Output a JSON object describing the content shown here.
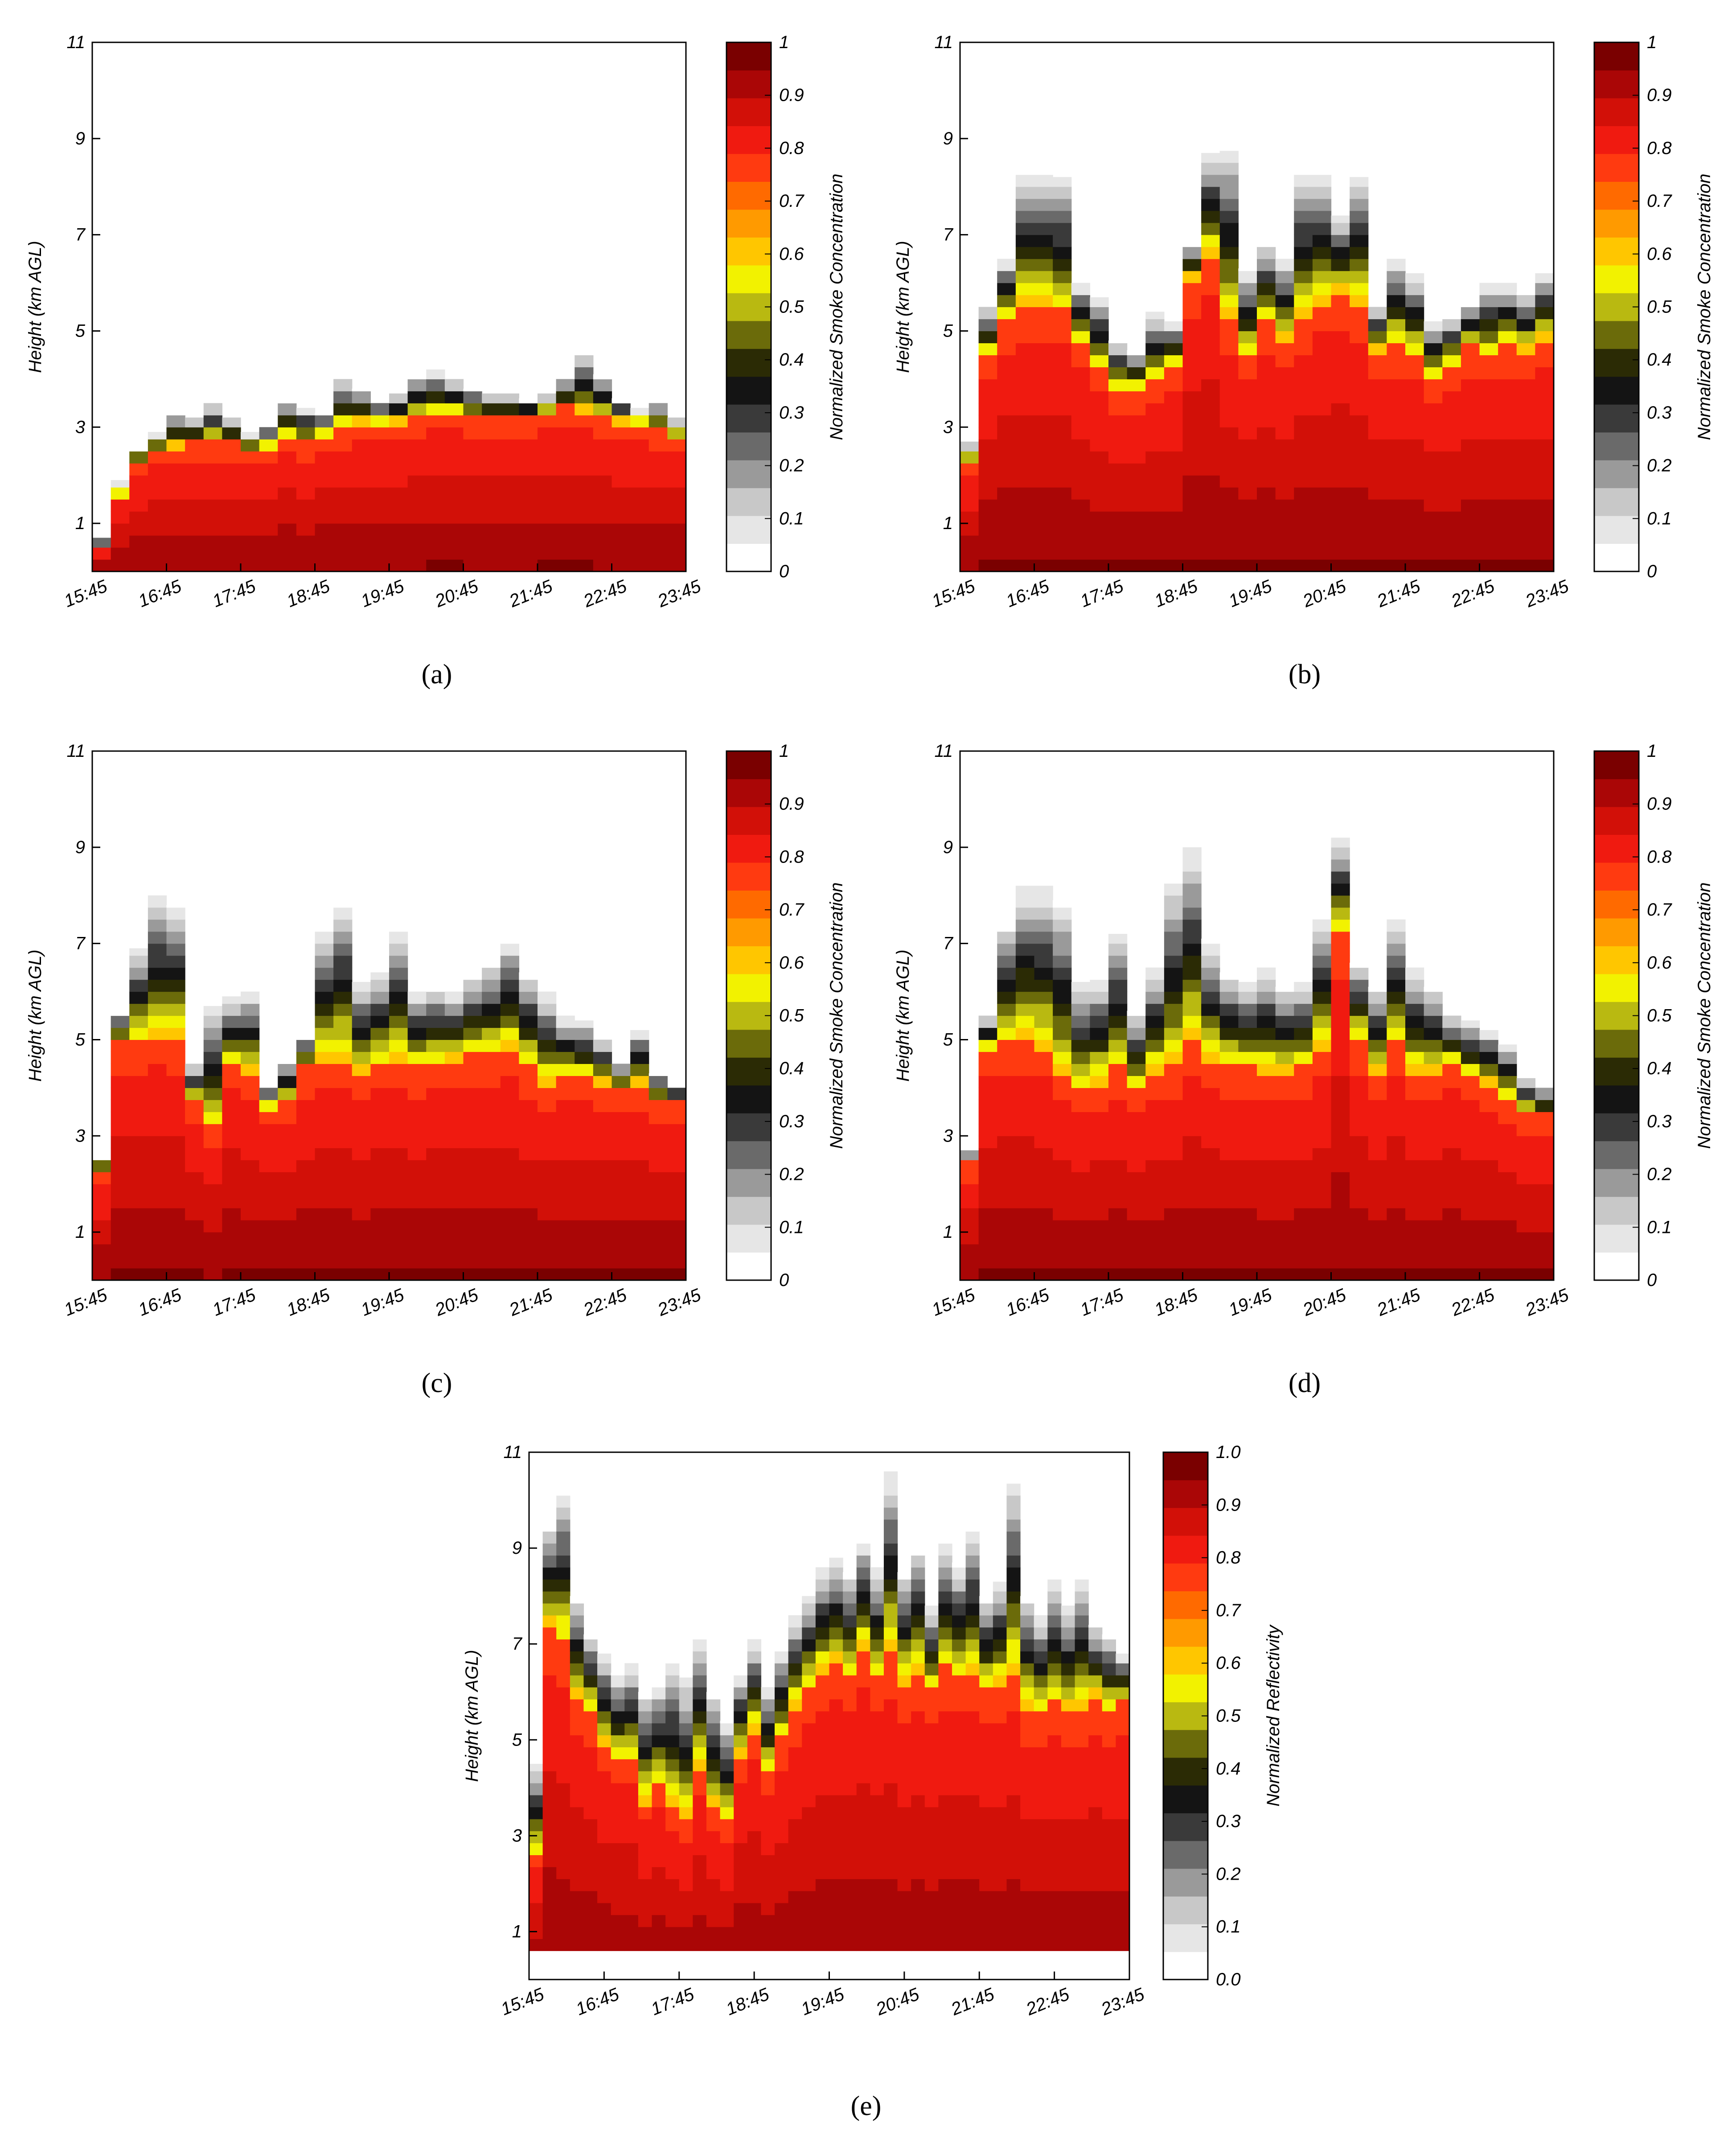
{
  "colors": {
    "scale": [
      "#ffffff",
      "#e6e6e6",
      "#c8c8c8",
      "#9a9a9a",
      "#6a6a6a",
      "#3a3a3a",
      "#141414",
      "#2b2b05",
      "#6b6b0a",
      "#b9b911",
      "#f2f200",
      "#ffc600",
      "#ff9a00",
      "#ff6a00",
      "#ff3a10",
      "#f01a10",
      "#d21008",
      "#aa0606",
      "#7a0000"
    ],
    "frame": "#000000"
  },
  "chart_data": [
    {
      "panel_label": "(a)",
      "type": "heatmap",
      "ylabel": "Height (km AGL)",
      "colorbar_label": "Normalized Smoke Concentration",
      "colorbar_ticks": [
        "0",
        "0.1",
        "0.2",
        "0.3",
        "0.4",
        "0.5",
        "0.6",
        "0.7",
        "0.8",
        "0.9",
        "1"
      ],
      "x_ticks": [
        "15:45",
        "16:45",
        "17:45",
        "18:45",
        "19:45",
        "20:45",
        "21:45",
        "22:45",
        "23:45"
      ],
      "y_ticks": [
        "1",
        "3",
        "5",
        "7",
        "9",
        "11"
      ],
      "ylim": [
        0,
        11
      ],
      "smoke_top_km": [
        0.7,
        1.9,
        2.6,
        2.9,
        3.3,
        3.2,
        3.5,
        3.2,
        2.9,
        3.0,
        3.6,
        3.4,
        3.3,
        4.0,
        3.8,
        3.5,
        3.7,
        4.1,
        4.2,
        4.0,
        3.8,
        3.7,
        3.7,
        3.6,
        3.7,
        4.0,
        4.6,
        4.1,
        3.6,
        3.4,
        3.5,
        3.2
      ],
      "concentrated_top_km": [
        0.5,
        1.6,
        2.3,
        2.5,
        2.6,
        2.7,
        2.7,
        2.7,
        2.5,
        2.6,
        2.8,
        2.7,
        2.8,
        3.0,
        3.1,
        3.1,
        3.1,
        3.2,
        3.3,
        3.3,
        3.2,
        3.2,
        3.2,
        3.2,
        3.3,
        3.4,
        3.3,
        3.2,
        3.1,
        3.1,
        3.0,
        2.8
      ]
    },
    {
      "panel_label": "(b)",
      "type": "heatmap",
      "ylabel": "Height (km AGL)",
      "colorbar_label": "Normalized Smoke Concentration",
      "colorbar_ticks": [
        "0",
        "0.1",
        "0.2",
        "0.3",
        "0.4",
        "0.5",
        "0.6",
        "0.7",
        "0.8",
        "0.9",
        "1"
      ],
      "x_ticks": [
        "15:45",
        "16:45",
        "17:45",
        "18:45",
        "19:45",
        "20:45",
        "21:45",
        "22:45",
        "23:45"
      ],
      "y_ticks": [
        "1",
        "3",
        "5",
        "7",
        "9",
        "11"
      ],
      "ylim": [
        0,
        11
      ],
      "smoke_top_km": [
        2.7,
        5.5,
        6.5,
        8.3,
        8.3,
        8.2,
        6.0,
        5.7,
        4.8,
        4.6,
        5.4,
        5.2,
        6.8,
        8.7,
        8.9,
        6.3,
        6.8,
        6.5,
        8.3,
        8.3,
        7.4,
        8.2,
        5.5,
        6.5,
        6.2,
        5.2,
        5.3,
        5.6,
        6.0,
        6.0,
        5.8,
        6.2
      ],
      "concentrated_top_km": [
        2.3,
        4.5,
        5.3,
        5.5,
        5.5,
        5.4,
        4.8,
        4.2,
        3.8,
        3.8,
        4.0,
        4.3,
        6.1,
        6.6,
        5.2,
        4.5,
        5.2,
        4.8,
        5.3,
        5.6,
        5.8,
        5.5,
        4.6,
        4.7,
        4.5,
        4.0,
        4.3,
        4.7,
        4.5,
        4.7,
        4.6,
        4.8
      ]
    },
    {
      "panel_label": "(c)",
      "type": "heatmap",
      "ylabel": "Height (km AGL)",
      "colorbar_label": "Normalized Smoke Concentration",
      "colorbar_ticks": [
        "0",
        "0.1",
        "0.2",
        "0.3",
        "0.4",
        "0.5",
        "0.6",
        "0.7",
        "0.8",
        "0.9",
        "1"
      ],
      "x_ticks": [
        "15:45",
        "16:45",
        "17:45",
        "18:45",
        "19:45",
        "20:45",
        "21:45",
        "22:45",
        "23:45"
      ],
      "y_ticks": [
        "1",
        "3",
        "5",
        "7",
        "9",
        "11"
      ],
      "ylim": [
        0,
        11
      ],
      "smoke_top_km": [
        2.6,
        5.6,
        6.9,
        8.0,
        7.8,
        4.5,
        5.7,
        5.9,
        6.0,
        4.0,
        4.6,
        5.1,
        7.4,
        7.9,
        6.2,
        6.4,
        7.4,
        6.0,
        6.1,
        6.0,
        6.3,
        6.6,
        7.1,
        6.4,
        6.0,
        5.5,
        5.4,
        5.0,
        4.5,
        5.2,
        4.3,
        4.0
      ],
      "concentrated_top_km": [
        2.3,
        4.9,
        5.0,
        5.1,
        5.0,
        3.7,
        3.2,
        4.5,
        4.3,
        3.6,
        3.7,
        4.4,
        4.6,
        4.6,
        4.3,
        4.5,
        4.6,
        4.4,
        4.5,
        4.6,
        4.7,
        4.7,
        4.8,
        4.4,
        4.1,
        4.2,
        4.2,
        4.1,
        4.0,
        4.1,
        3.7,
        3.7
      ]
    },
    {
      "panel_label": "(d)",
      "type": "heatmap",
      "ylabel": "Height (km AGL)",
      "colorbar_label": "Normalized Smoke Concentration",
      "colorbar_ticks": [
        "0",
        "0.1",
        "0.2",
        "0.3",
        "0.4",
        "0.5",
        "0.6",
        "0.7",
        "0.8",
        "0.9",
        "1"
      ],
      "x_ticks": [
        "15:45",
        "16:45",
        "17:45",
        "18:45",
        "19:45",
        "20:45",
        "21:45",
        "22:45",
        "23:45"
      ],
      "y_ticks": [
        "1",
        "3",
        "5",
        "7",
        "9",
        "11"
      ],
      "ylim": [
        0,
        11
      ],
      "smoke_top_km": [
        2.7,
        5.5,
        7.4,
        8.2,
        8.2,
        7.9,
        6.2,
        6.3,
        7.2,
        5.6,
        6.5,
        8.3,
        9.0,
        7.1,
        6.4,
        6.2,
        6.5,
        6.1,
        6.2,
        7.5,
        9.2,
        6.6,
        6.1,
        7.5,
        6.5,
        6.1,
        5.5,
        5.4,
        5.2,
        4.9,
        4.2,
        4.0
      ],
      "concentrated_top_km": [
        2.4,
        4.8,
        4.9,
        5.0,
        4.8,
        4.2,
        3.9,
        4.1,
        4.4,
        3.9,
        4.3,
        4.4,
        4.9,
        4.5,
        4.4,
        4.4,
        4.3,
        4.3,
        4.4,
        4.8,
        7.2,
        5.0,
        4.3,
        4.9,
        4.3,
        4.3,
        4.5,
        4.2,
        4.1,
        3.8,
        3.5,
        3.4
      ]
    },
    {
      "panel_label": "(e)",
      "type": "heatmap",
      "ylabel": "Height (km AGL)",
      "colorbar_label": "Normalized Reflectivity",
      "colorbar_ticks": [
        "0.0",
        "0.1",
        "0.2",
        "0.3",
        "0.4",
        "0.5",
        "0.6",
        "0.7",
        "0.8",
        "0.9",
        "1.0"
      ],
      "x_ticks": [
        "15:45",
        "16:45",
        "17:45",
        "18:45",
        "19:45",
        "20:45",
        "21:45",
        "22:45",
        "23:45"
      ],
      "y_ticks": [
        "1",
        "3",
        "5",
        "7",
        "9",
        "11"
      ],
      "ylim": [
        0,
        11
      ],
      "smoke_top_km": [
        4.5,
        9.5,
        10.2,
        8.0,
        7.2,
        6.8,
        6.4,
        6.6,
        6.0,
        6.2,
        6.7,
        6.3,
        7.2,
        6.0,
        5.4,
        6.4,
        7.1,
        6.1,
        6.9,
        7.6,
        8.0,
        8.6,
        8.8,
        8.5,
        9.2,
        8.6,
        10.6,
        8.5,
        9.0,
        7.8,
        9.2,
        8.7,
        9.4,
        8.0,
        8.3,
        10.5,
        8.0,
        7.6,
        8.4,
        7.8,
        8.5,
        7.4,
        7.2,
        6.8
      ],
      "concentrated_top_km": [
        2.6,
        7.4,
        7.0,
        5.9,
        5.6,
        4.9,
        4.6,
        4.6,
        3.7,
        4.0,
        3.6,
        3.3,
        4.4,
        3.6,
        3.3,
        4.7,
        5.2,
        4.3,
        5.0,
        5.7,
        6.1,
        6.4,
        6.6,
        6.3,
        6.9,
        6.3,
        6.8,
        6.2,
        6.4,
        6.0,
        6.5,
        6.3,
        6.4,
        6.0,
        6.2,
        6.4,
        5.7,
        5.6,
        5.8,
        5.6,
        5.7,
        5.9,
        5.6,
        5.8
      ],
      "base_km": 0.6
    }
  ]
}
